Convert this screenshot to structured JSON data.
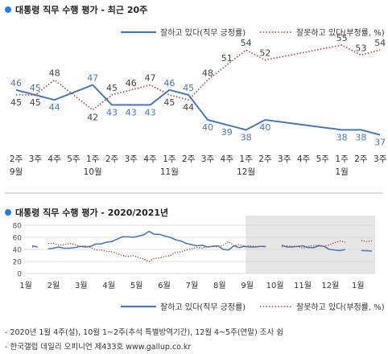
{
  "chart1": {
    "title": "대통령 직무 수행 평가 - 최근 20주",
    "legend": [
      "잘하고 있다(직무 긍정률)",
      "잘못하고 있다(부정률, %)"
    ]
  },
  "chart2": {
    "title": "대통령 직무 수행 평가 - 2020/2021년",
    "legend": [
      "잘하고 있다(직무 긍정률)",
      "잘못하고 있다(부정률, %)"
    ]
  },
  "notes": [
    "- 2020년 1월 4주(설), 10월 1~2주(추석 특별방역기간), 12월 4~5주(연말) 조사 쉼",
    "- 한국갤럽 데일리 오피니언 제433호 www.gallup.co.kr"
  ],
  "colors": {
    "positive": "#4a78b6",
    "negative": "#b0413e",
    "title_dot": "#2b7cd3",
    "shade": "#e6e6e6"
  },
  "chart_data": [
    {
      "type": "line",
      "title": "대통령 직무 수행 평가 - 최근 20주",
      "x": [
        "2주",
        "3주",
        "4주",
        "5주",
        "1주",
        "2주",
        "3주",
        "4주",
        "1주",
        "2주",
        "3주",
        "4주",
        "1주",
        "2주",
        "3주",
        "4주",
        "5주",
        "1주",
        "2주",
        "3주"
      ],
      "x_groups": [
        {
          "label": "9월",
          "index": 0
        },
        {
          "label": "10월",
          "index": 4
        },
        {
          "label": "11월",
          "index": 8
        },
        {
          "label": "12월",
          "index": 12
        },
        {
          "label": "1월",
          "index": 17
        }
      ],
      "series": [
        {
          "name": "잘하고 있다(직무 긍정률)",
          "style": "solid",
          "values": [
            46,
            45,
            44,
            null,
            47,
            43,
            43,
            43,
            46,
            45,
            40,
            39,
            38,
            40,
            null,
            null,
            null,
            38,
            38,
            37
          ]
        },
        {
          "name": "잘못하고 있다(부정률, %)",
          "style": "dotted",
          "values": [
            45,
            45,
            48,
            null,
            42,
            45,
            46,
            47,
            45,
            44,
            48,
            51,
            54,
            52,
            null,
            null,
            null,
            55,
            53,
            54
          ]
        }
      ],
      "grid": false
    },
    {
      "type": "line",
      "title": "대통령 직무 수행 평가 - 2020/2021년",
      "ylim": [
        0,
        80
      ],
      "yticks": [
        0,
        20,
        40,
        60,
        80
      ],
      "x_labels": [
        "1월",
        "2월",
        "3월",
        "4월",
        "5월",
        "6월",
        "7월",
        "8월",
        "9월",
        "10월",
        "11월",
        "12월",
        "1월"
      ],
      "shaded_from": "9월",
      "series": [
        {
          "name": "잘하고 있다(직무 긍정률)",
          "style": "solid",
          "values": [
            46,
            44,
            null,
            41,
            42,
            44,
            42,
            42,
            43,
            45,
            44,
            45,
            49,
            49,
            52,
            53,
            57,
            61,
            61,
            60,
            62,
            64,
            70,
            65,
            65,
            62,
            60,
            56,
            54,
            50,
            48,
            46,
            47,
            44,
            45,
            46,
            40,
            39,
            46,
            43,
            45,
            44,
            44,
            45,
            45,
            null,
            null,
            47,
            44,
            44,
            45,
            46,
            43,
            43,
            46,
            45,
            40,
            39,
            38,
            40,
            null,
            null,
            38,
            38,
            37
          ]
        },
        {
          "name": "잘못하고 있다(부정률, %)",
          "style": "dotted",
          "values": [
            44,
            45,
            null,
            50,
            50,
            47,
            48,
            50,
            48,
            45,
            46,
            43,
            39,
            39,
            37,
            36,
            33,
            30,
            28,
            30,
            27,
            24,
            20,
            25,
            26,
            28,
            30,
            35,
            36,
            39,
            41,
            43,
            42,
            45,
            45,
            44,
            47,
            53,
            46,
            48,
            45,
            46,
            45,
            45,
            44,
            null,
            null,
            44,
            46,
            45,
            45,
            42,
            45,
            46,
            47,
            45,
            48,
            51,
            54,
            52,
            null,
            null,
            55,
            53,
            54
          ]
        }
      ],
      "grid": true
    }
  ]
}
